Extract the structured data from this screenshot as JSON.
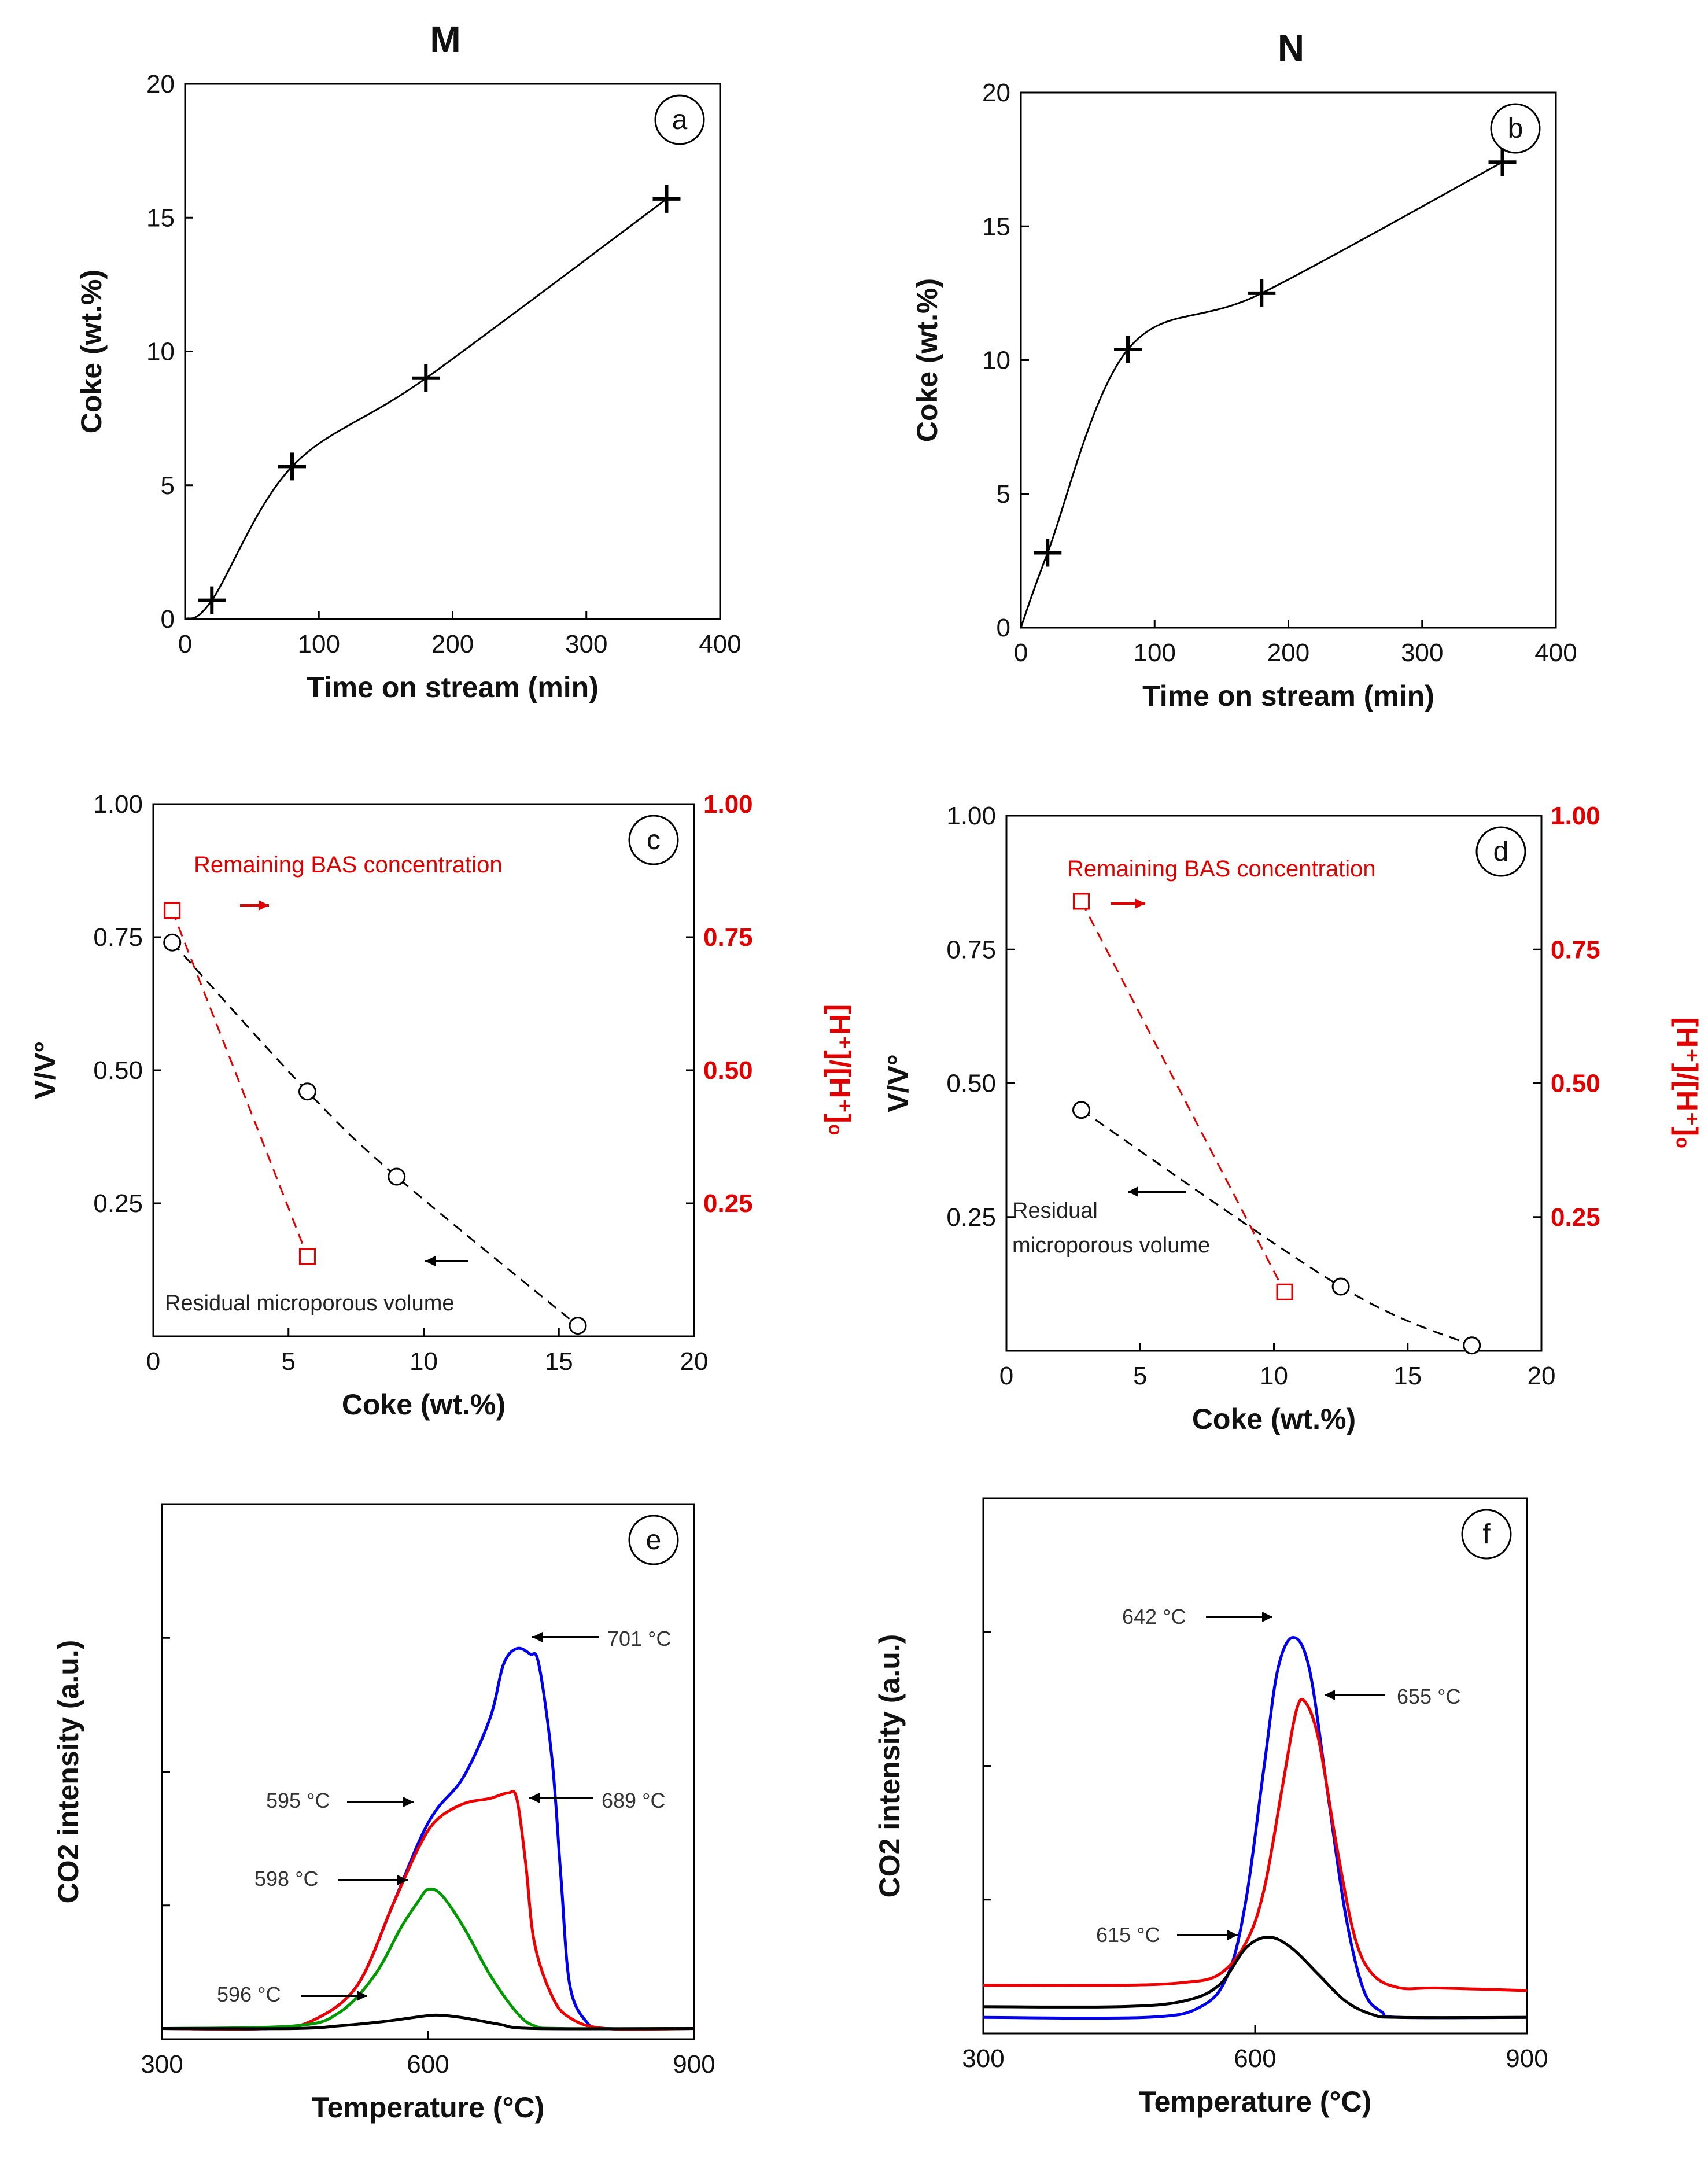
{
  "columns": [
    "M",
    "N"
  ],
  "chart_data": [
    {
      "id": "a",
      "type": "line",
      "badge": "a",
      "xlabel": "Time on stream (min)",
      "ylabel": "Coke (wt.%)",
      "xlim": [
        0,
        400
      ],
      "ylim": [
        0,
        20
      ],
      "xticks": [
        0,
        100,
        200,
        300,
        400
      ],
      "yticks": [
        0,
        5,
        10,
        15,
        20
      ],
      "series": [
        {
          "color": "#000000",
          "marker": "plus",
          "smooth": true,
          "x": [
            0,
            20,
            80,
            180,
            360
          ],
          "y": [
            0,
            0.7,
            5.7,
            9.0,
            15.7
          ]
        }
      ]
    },
    {
      "id": "b",
      "type": "line",
      "badge": "b",
      "xlabel": "Time on stream (min)",
      "ylabel": "Coke (wt.%)",
      "xlim": [
        0,
        400
      ],
      "ylim": [
        0,
        20
      ],
      "xticks": [
        0,
        100,
        200,
        300,
        400
      ],
      "yticks": [
        0,
        5,
        10,
        15,
        20
      ],
      "series": [
        {
          "color": "#000000",
          "marker": "plus",
          "smooth": true,
          "x": [
            0,
            20,
            80,
            180,
            360
          ],
          "y": [
            0,
            2.8,
            10.4,
            12.5,
            17.4
          ]
        }
      ]
    },
    {
      "id": "c",
      "type": "scatter",
      "badge": "c",
      "xlabel": "Coke (wt.%)",
      "ylabel": "V/V°",
      "y2label": "[H⁺]/[H⁺]₀",
      "xlim": [
        0,
        20
      ],
      "ylim": [
        0,
        1
      ],
      "y2lim": [
        0,
        1
      ],
      "xticks": [
        0,
        5,
        10,
        15,
        20
      ],
      "yticks": [
        "0.25",
        "0.50",
        "0.75",
        "1.00"
      ],
      "series": [
        {
          "color": "#000000",
          "marker": "circle",
          "axis": "left",
          "dashed": true,
          "x": [
            0.7,
            5.7,
            9.0,
            15.7
          ],
          "y": [
            0.74,
            0.46,
            0.3,
            0.02
          ]
        },
        {
          "color": "#e00000",
          "marker": "square",
          "axis": "right",
          "dashed": true,
          "x": [
            0.7,
            5.7
          ],
          "y": [
            0.8,
            0.15
          ]
        }
      ],
      "annotations": {
        "red": "Remaining BAS concentration",
        "black": [
          "Residual microporous volume"
        ]
      }
    },
    {
      "id": "d",
      "type": "scatter",
      "badge": "d",
      "xlabel": "Coke (wt.%)",
      "ylabel": "V/V°",
      "y2label": "[H⁺]/[H⁺]₀",
      "xlim": [
        0,
        20
      ],
      "ylim": [
        0,
        1
      ],
      "y2lim": [
        0,
        1
      ],
      "xticks": [
        0,
        5,
        10,
        15,
        20
      ],
      "yticks": [
        "0.25",
        "0.50",
        "0.75",
        "1.00"
      ],
      "series": [
        {
          "color": "#000000",
          "marker": "circle",
          "axis": "left",
          "dashed": true,
          "x": [
            2.8,
            12.5,
            17.4
          ],
          "y": [
            0.45,
            0.12,
            0.01
          ]
        },
        {
          "color": "#e00000",
          "marker": "square",
          "axis": "right",
          "dashed": true,
          "x": [
            2.8,
            10.4
          ],
          "y": [
            0.84,
            0.11
          ]
        }
      ],
      "annotations": {
        "red": "Remaining BAS concentration",
        "black": [
          "Residual",
          "microporous volume"
        ]
      }
    },
    {
      "id": "e",
      "type": "line",
      "badge": "e",
      "xlabel": "Temperature (°C)",
      "ylabel": "CO2 intensity (a.u.)",
      "xlim": [
        300,
        900
      ],
      "ylim": [
        0,
        1.0
      ],
      "xticks": [
        300,
        600,
        900
      ],
      "series": [
        {
          "color": "#0000ee",
          "x": [
            300,
            420,
            470,
            520,
            560,
            590,
            610,
            640,
            670,
            685,
            700,
            715,
            725,
            740,
            750,
            760,
            780,
            800,
            900
          ],
          "y": [
            0.02,
            0.02,
            0.035,
            0.1,
            0.25,
            0.37,
            0.43,
            0.49,
            0.6,
            0.7,
            0.73,
            0.72,
            0.7,
            0.52,
            0.3,
            0.1,
            0.03,
            0.02,
            0.02
          ]
        },
        {
          "color": "#ee0000",
          "x": [
            300,
            420,
            470,
            520,
            560,
            590,
            610,
            640,
            670,
            690,
            700,
            710,
            720,
            740,
            760,
            800,
            900
          ],
          "y": [
            0.02,
            0.02,
            0.035,
            0.1,
            0.25,
            0.36,
            0.41,
            0.44,
            0.45,
            0.46,
            0.45,
            0.33,
            0.18,
            0.08,
            0.04,
            0.02,
            0.02
          ]
        },
        {
          "color": "#009900",
          "x": [
            300,
            450,
            500,
            540,
            570,
            590,
            600,
            615,
            640,
            670,
            700,
            720,
            750,
            900
          ],
          "y": [
            0.02,
            0.025,
            0.05,
            0.12,
            0.21,
            0.26,
            0.28,
            0.27,
            0.21,
            0.12,
            0.05,
            0.025,
            0.02,
            0.02
          ]
        },
        {
          "color": "#000000",
          "x": [
            300,
            450,
            500,
            550,
            590,
            610,
            640,
            680,
            720,
            900
          ],
          "y": [
            0.02,
            0.02,
            0.025,
            0.033,
            0.042,
            0.045,
            0.04,
            0.028,
            0.02,
            0.02
          ]
        }
      ],
      "annotations": [
        "701 °C",
        "689 °C",
        "595 °C",
        "598 °C",
        "596 °C"
      ]
    },
    {
      "id": "f",
      "type": "line",
      "badge": "f",
      "xlabel": "Temperature (°C)",
      "ylabel": "CO2 intensity (a.u.)",
      "xlim": [
        300,
        900
      ],
      "ylim": [
        0,
        1.0
      ],
      "xticks": [
        300,
        600,
        900
      ],
      "series": [
        {
          "color": "#0000ee",
          "x": [
            300,
            480,
            540,
            570,
            590,
            610,
            625,
            642,
            660,
            680,
            700,
            720,
            740,
            760,
            900
          ],
          "y": [
            0.03,
            0.03,
            0.05,
            0.11,
            0.25,
            0.5,
            0.68,
            0.74,
            0.68,
            0.45,
            0.22,
            0.08,
            0.04,
            0.03,
            0.03
          ]
        },
        {
          "color": "#ee0000",
          "x": [
            300,
            450,
            520,
            560,
            590,
            610,
            630,
            645,
            655,
            670,
            690,
            710,
            730,
            760,
            800,
            900
          ],
          "y": [
            0.09,
            0.09,
            0.095,
            0.11,
            0.17,
            0.27,
            0.46,
            0.6,
            0.62,
            0.55,
            0.35,
            0.18,
            0.11,
            0.085,
            0.085,
            0.08
          ]
        },
        {
          "color": "#000000",
          "x": [
            300,
            450,
            520,
            560,
            590,
            615,
            640,
            670,
            700,
            730,
            760,
            900
          ],
          "y": [
            0.05,
            0.05,
            0.06,
            0.09,
            0.16,
            0.18,
            0.16,
            0.11,
            0.06,
            0.035,
            0.03,
            0.03
          ]
        }
      ],
      "annotations": [
        "642 °C",
        "655 °C",
        "615 °C"
      ]
    }
  ]
}
